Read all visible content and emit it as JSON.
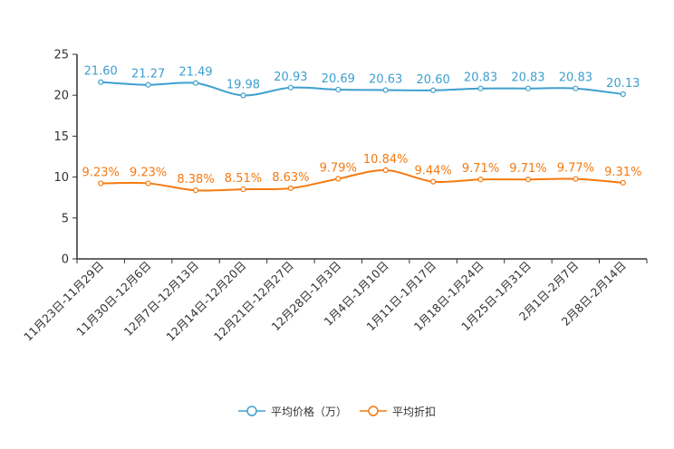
{
  "chart_data": {
    "type": "line",
    "categories": [
      "11月23日-11月29日",
      "11月30日-12月6日",
      "12月7日-12月13日",
      "12月14日-12月20日",
      "12月21日-12月27日",
      "12月28日-1月3日",
      "1月4日-1月10日",
      "1月11日-1月17日",
      "1月18日-1月24日",
      "1月25日-1月31日",
      "2月1日-2月7日",
      "2月8日-2月14日"
    ],
    "series": [
      {
        "name": "平均价格（万）",
        "color": "#3e9fcf",
        "values": [
          21.6,
          21.27,
          21.49,
          19.98,
          20.93,
          20.69,
          20.63,
          20.6,
          20.83,
          20.83,
          20.83,
          20.13
        ],
        "labels": [
          "21.60",
          "21.27",
          "21.49",
          "19.98",
          "20.93",
          "20.69",
          "20.63",
          "20.60",
          "20.83",
          "20.83",
          "20.83",
          "20.13"
        ]
      },
      {
        "name": "平均折扣",
        "color": "#f5790f",
        "values": [
          9.23,
          9.23,
          8.38,
          8.51,
          8.63,
          9.79,
          10.84,
          9.44,
          9.71,
          9.71,
          9.77,
          9.31
        ],
        "labels": [
          "9.23%",
          "9.23%",
          "8.38%",
          "8.51%",
          "8.63%",
          "9.79%",
          "10.84%",
          "9.44%",
          "9.71%",
          "9.71%",
          "9.77%",
          "9.31%"
        ]
      }
    ],
    "ylim": [
      0,
      25
    ],
    "yticks": [
      0,
      5,
      10,
      15,
      20,
      25
    ],
    "title": "",
    "xlabel": "",
    "ylabel": "",
    "legend_position": "bottom"
  },
  "legend": {
    "price_label": "平均价格（万）",
    "discount_label": "平均折扣"
  }
}
